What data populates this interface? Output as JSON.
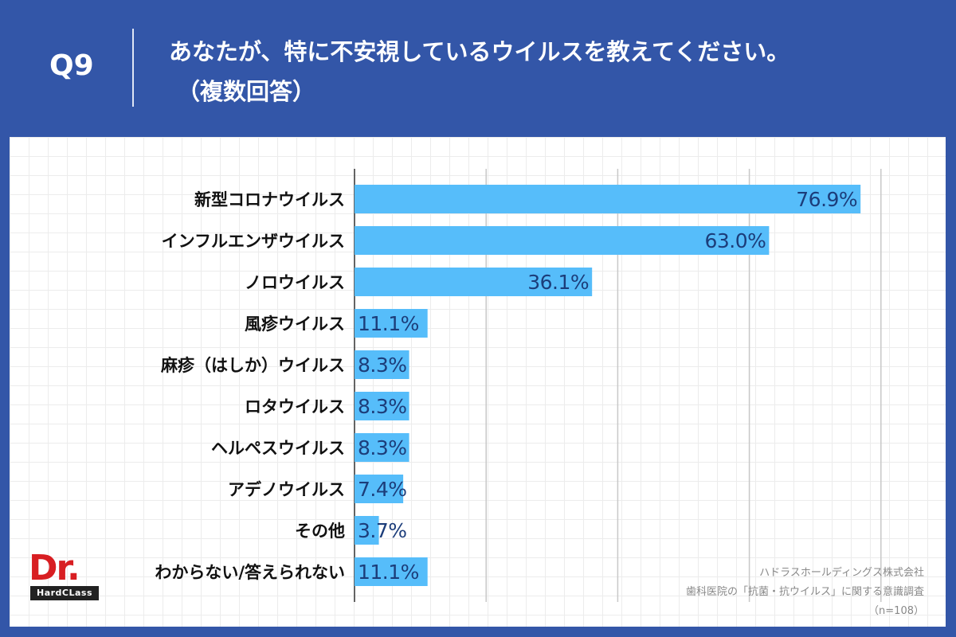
{
  "header": {
    "question": "Q9",
    "title_line1": "あなたが、特に不安視しているウイルスを教えてください。",
    "title_line2": "（複数回答）"
  },
  "colors": {
    "background": "#3356a8",
    "bar": "#56bdfa",
    "value_text": "#1c3d7a"
  },
  "chart_data": {
    "type": "bar",
    "orientation": "horizontal",
    "categories": [
      "新型コロナウイルス",
      "インフルエンザウイルス",
      "ノロウイルス",
      "風疹ウイルス",
      "麻疹（はしか）ウイルス",
      "ロタウイルス",
      "ヘルペスウイルス",
      "アデノウイルス",
      "その他",
      "わからない/答えられない"
    ],
    "values": [
      76.9,
      63.0,
      36.1,
      11.1,
      8.3,
      8.3,
      8.3,
      7.4,
      3.7,
      11.1
    ],
    "value_labels": [
      "76.9%",
      "63.0%",
      "36.1%",
      "11.1%",
      "8.3%",
      "8.3%",
      "8.3%",
      "7.4%",
      "3.7%",
      "11.1%"
    ],
    "xlim": [
      0,
      100
    ],
    "grid": true
  },
  "logo": {
    "main": "Dr.",
    "sub": "HardCLass"
  },
  "source": {
    "line1": "ハドラスホールディングス株式会社",
    "line2": "歯科医院の「抗菌・抗ウイルス」に関する意識調査",
    "line3": "（n=108）"
  }
}
